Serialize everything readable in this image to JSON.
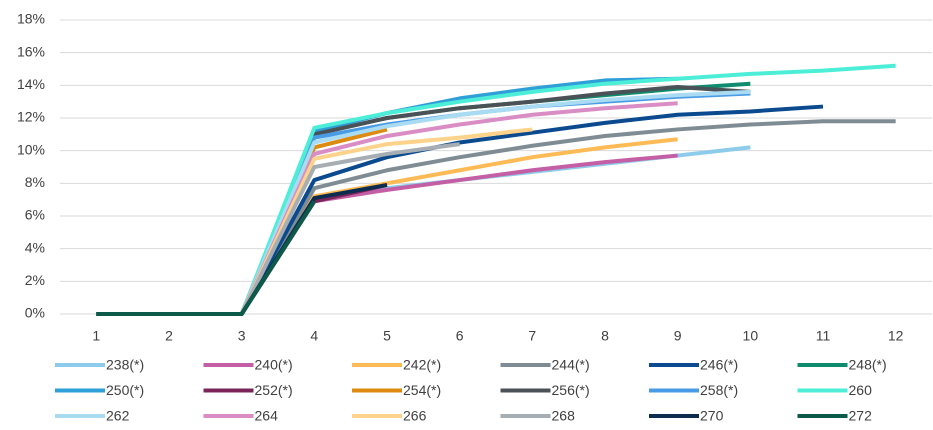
{
  "chart_data": {
    "type": "line",
    "categories": [
      1,
      2,
      3,
      4,
      5,
      6,
      7,
      8,
      9,
      10,
      11,
      12
    ],
    "ylim": [
      0,
      18
    ],
    "yticks": [
      {
        "value": 0,
        "label": "0%"
      },
      {
        "value": 2,
        "label": "2%"
      },
      {
        "value": 4,
        "label": "4%"
      },
      {
        "value": 6,
        "label": "6%"
      },
      {
        "value": 8,
        "label": "8%"
      },
      {
        "value": 10,
        "label": "10%"
      },
      {
        "value": 12,
        "label": "12%"
      },
      {
        "value": 14,
        "label": "14%"
      },
      {
        "value": 16,
        "label": "16%"
      },
      {
        "value": 18,
        "label": "18%"
      }
    ],
    "grid": true,
    "legend": "bottom",
    "series": [
      {
        "name": "238(*)",
        "color": "#8ccbea",
        "values": [
          0,
          0,
          0,
          7.0,
          7.7,
          8.2,
          8.7,
          9.2,
          9.7,
          10.2,
          null,
          null
        ]
      },
      {
        "name": "240(*)",
        "color": "#c45fa6",
        "values": [
          0,
          0,
          0,
          6.9,
          7.6,
          8.2,
          8.8,
          9.3,
          9.7,
          null,
          null,
          null
        ]
      },
      {
        "name": "242(*)",
        "color": "#fdba55",
        "values": [
          0,
          0,
          0,
          7.2,
          8.0,
          8.8,
          9.6,
          10.2,
          10.7,
          null,
          null,
          null
        ]
      },
      {
        "name": "244(*)",
        "color": "#7f8c93",
        "values": [
          0,
          0,
          0,
          7.7,
          8.8,
          9.6,
          10.3,
          10.9,
          11.3,
          11.6,
          11.8,
          11.8
        ]
      },
      {
        "name": "246(*)",
        "color": "#0b4a8e",
        "values": [
          0,
          0,
          0,
          8.2,
          9.6,
          10.5,
          11.1,
          11.7,
          12.2,
          12.4,
          12.7,
          null
        ]
      },
      {
        "name": "248(*)",
        "color": "#0e8c6d",
        "values": [
          0,
          0,
          0,
          11.0,
          12.0,
          12.6,
          13.0,
          13.4,
          13.8,
          14.1,
          null,
          null
        ]
      },
      {
        "name": "250(*)",
        "color": "#2f9fd8",
        "values": [
          0,
          0,
          0,
          11.2,
          12.3,
          13.2,
          13.8,
          14.3,
          14.4,
          null,
          null,
          null
        ]
      },
      {
        "name": "252(*)",
        "color": "#7a2559",
        "values": [
          0,
          0,
          0,
          6.9,
          7.9,
          null,
          null,
          null,
          null,
          null,
          null,
          null
        ]
      },
      {
        "name": "254(*)",
        "color": "#dd8a10",
        "values": [
          0,
          0,
          0,
          10.2,
          11.3,
          null,
          null,
          null,
          null,
          null,
          null,
          null
        ]
      },
      {
        "name": "256(*)",
        "color": "#4a5257",
        "values": [
          0,
          0,
          0,
          11.0,
          12.0,
          12.6,
          13.0,
          13.5,
          13.9,
          13.6,
          null,
          null
        ]
      },
      {
        "name": "258(*)",
        "color": "#4a9be6",
        "values": [
          0,
          0,
          0,
          10.8,
          11.6,
          12.2,
          12.7,
          13.0,
          13.3,
          13.5,
          null,
          null
        ]
      },
      {
        "name": "260",
        "color": "#4deed8",
        "values": [
          0,
          0,
          0,
          11.4,
          12.3,
          13.0,
          13.6,
          14.1,
          14.4,
          14.7,
          14.9,
          15.2
        ]
      },
      {
        "name": "262",
        "color": "#a9dbf2",
        "values": [
          0,
          0,
          0,
          10.5,
          11.5,
          12.2,
          12.7,
          13.1,
          13.4,
          13.6,
          null,
          null
        ]
      },
      {
        "name": "264",
        "color": "#d98dc4",
        "values": [
          0,
          0,
          0,
          9.8,
          10.9,
          11.6,
          12.2,
          12.6,
          12.9,
          null,
          null,
          null
        ]
      },
      {
        "name": "266",
        "color": "#fdd28a",
        "values": [
          0,
          0,
          0,
          9.5,
          10.4,
          10.8,
          11.3,
          null,
          null,
          null,
          null,
          null
        ]
      },
      {
        "name": "268",
        "color": "#a6aeb3",
        "values": [
          0,
          0,
          0,
          9.0,
          9.8,
          10.4,
          null,
          null,
          null,
          null,
          null,
          null
        ]
      },
      {
        "name": "270",
        "color": "#0c2d4f",
        "values": [
          0,
          0,
          0,
          7.1,
          7.9,
          null,
          null,
          null,
          null,
          null,
          null,
          null
        ]
      },
      {
        "name": "272",
        "color": "#0b5a4a",
        "values": [
          0,
          0,
          0,
          6.9,
          null,
          null,
          null,
          null,
          null,
          null,
          null,
          null
        ]
      }
    ]
  }
}
